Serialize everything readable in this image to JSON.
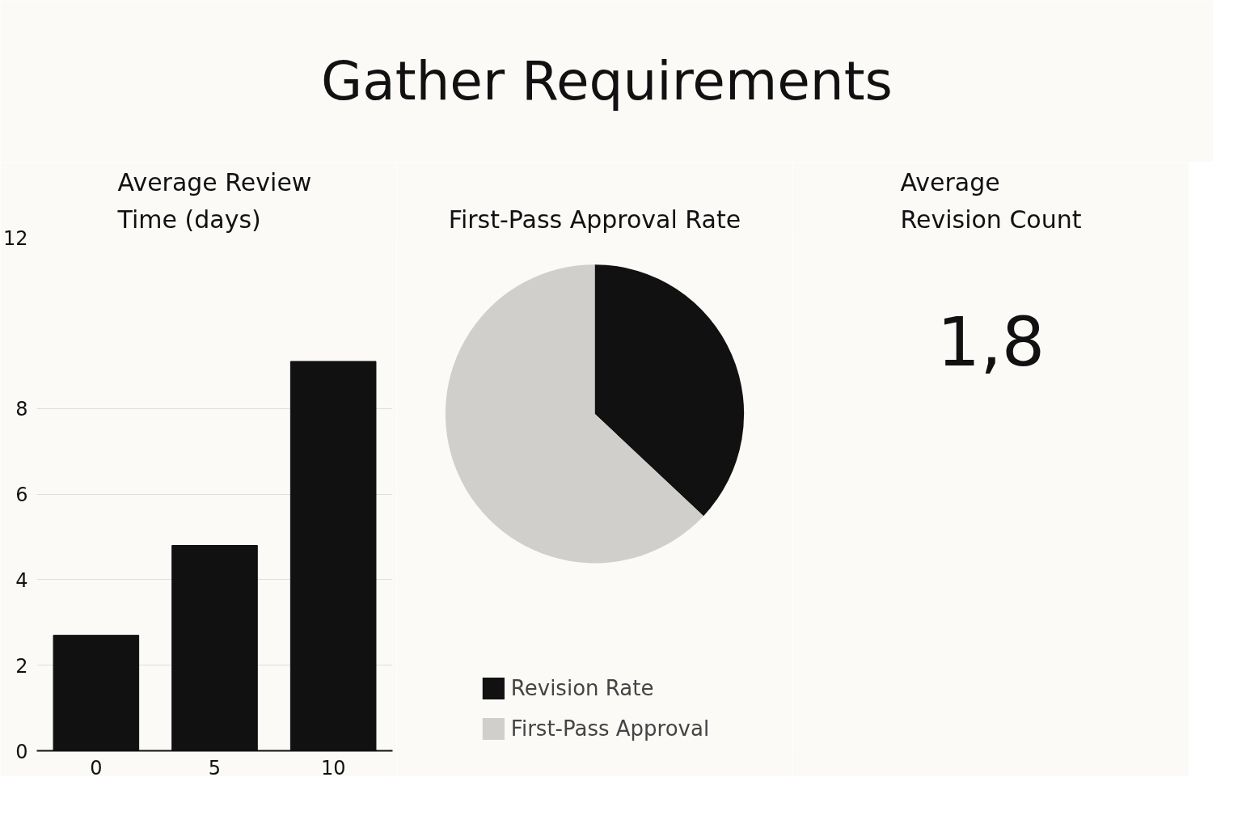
{
  "chart_data": [
    {
      "type": "other",
      "title": "Gather Requirements"
    },
    {
      "type": "bar",
      "title": "Average Review\nTime (days)",
      "categories": [
        "0",
        "5",
        "10"
      ],
      "values": [
        2.7,
        4.8,
        9.1
      ],
      "color": "#111111",
      "ylim": [
        0,
        12
      ],
      "yticks": [
        0,
        2,
        4,
        6,
        8,
        12
      ],
      "grid": "y"
    },
    {
      "type": "pie",
      "title": "First-Pass Approval Rate",
      "categories": [
        "Revision Rate",
        "First-Pass Approval"
      ],
      "values": [
        37,
        63
      ],
      "colors": [
        "#111111",
        "#d0cfcb"
      ],
      "legend": "bottom"
    },
    {
      "type": "other",
      "title": "Average\nRevision Count",
      "annotations": [
        "1,8"
      ]
    }
  ]
}
